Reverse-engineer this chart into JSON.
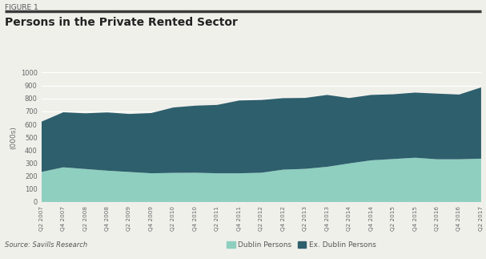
{
  "title": "Persons in the Private Rented Sector",
  "figure_label": "FIGURE 1",
  "ylabel": "(000s)",
  "source": "Source: Savills Research",
  "ylim": [
    0,
    1000
  ],
  "yticks": [
    0,
    100,
    200,
    300,
    400,
    500,
    600,
    700,
    800,
    900,
    1000
  ],
  "color_dublin": "#8ecfc0",
  "color_ex_dublin": "#2e5f6d",
  "legend_labels": [
    "Dublin Persons",
    "Ex. Dublin Persons"
  ],
  "x_labels": [
    "Q2 2007",
    "Q4 2007",
    "Q2 2008",
    "Q4 2008",
    "Q2 2009",
    "Q4 2009",
    "Q2 2010",
    "Q4 2010",
    "Q2 2011",
    "Q4 2011",
    "Q2 2012",
    "Q4 2012",
    "Q2 2013",
    "Q4 2013",
    "Q2 2014",
    "Q4 2014",
    "Q2 2015",
    "Q4 2015",
    "Q2 2016",
    "Q4 2016",
    "Q2 2017"
  ],
  "dublin_persons": [
    232,
    268,
    255,
    242,
    232,
    222,
    225,
    226,
    222,
    222,
    226,
    250,
    256,
    272,
    298,
    322,
    332,
    342,
    330,
    330,
    335
  ],
  "ex_dublin_persons": [
    388,
    425,
    430,
    450,
    448,
    465,
    505,
    518,
    528,
    562,
    562,
    552,
    548,
    555,
    505,
    505,
    500,
    503,
    507,
    500,
    550
  ],
  "background_color": "#f0f0eb",
  "plot_bg_color": "#f0f0eb",
  "grid_color": "#ffffff",
  "spine_color": "#cccccc"
}
